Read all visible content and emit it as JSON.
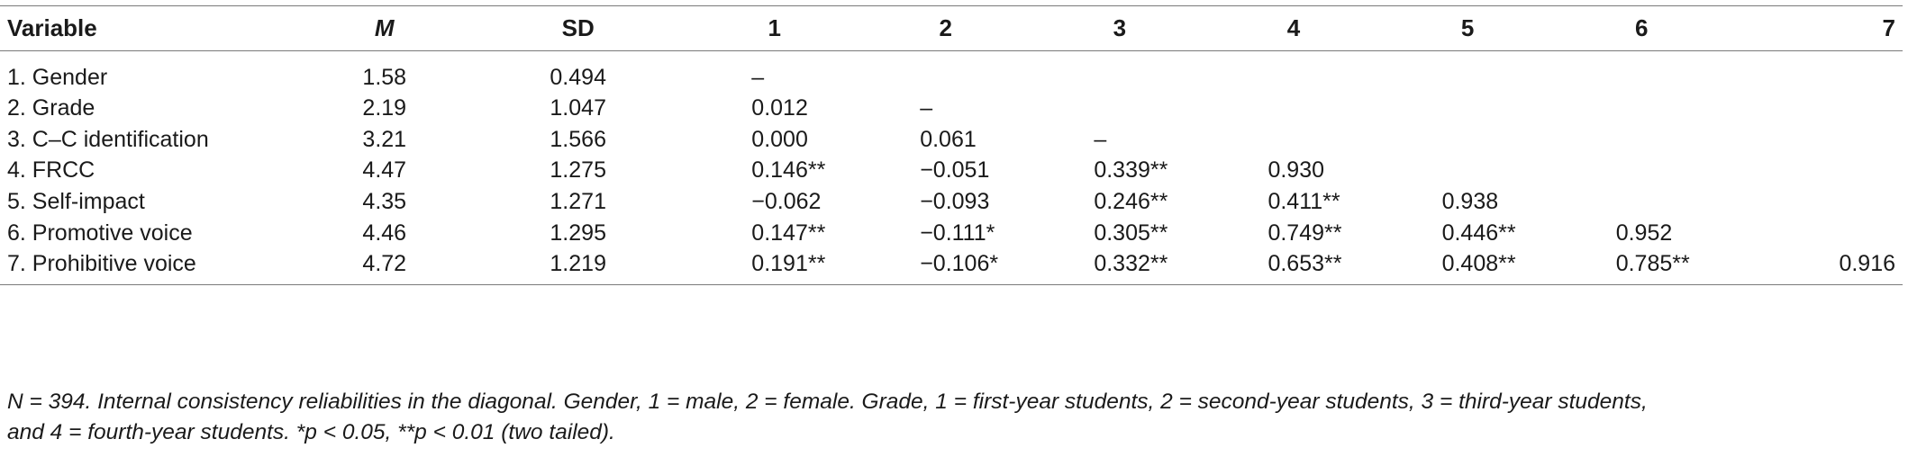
{
  "table": {
    "headers": [
      "Variable",
      "M",
      "SD",
      "1",
      "2",
      "3",
      "4",
      "5",
      "6",
      "7"
    ],
    "rows": [
      [
        "1. Gender",
        "1.58",
        "0.494",
        "–",
        "",
        "",
        "",
        "",
        "",
        ""
      ],
      [
        "2. Grade",
        "2.19",
        "1.047",
        "0.012",
        "–",
        "",
        "",
        "",
        "",
        ""
      ],
      [
        "3. C–C identification",
        "3.21",
        "1.566",
        "0.000",
        "0.061",
        "–",
        "",
        "",
        "",
        ""
      ],
      [
        "4. FRCC",
        "4.47",
        "1.275",
        "0.146**",
        "−0.051",
        "0.339**",
        "0.930",
        "",
        "",
        ""
      ],
      [
        "5. Self-impact",
        "4.35",
        "1.271",
        "−0.062",
        "−0.093",
        "0.246**",
        "0.411**",
        "0.938",
        "",
        ""
      ],
      [
        "6. Promotive voice",
        "4.46",
        "1.295",
        "0.147**",
        "−0.111*",
        "0.305**",
        "0.749**",
        "0.446**",
        "0.952",
        ""
      ],
      [
        "7. Prohibitive voice",
        "4.72",
        "1.219",
        "0.191**",
        "−0.106*",
        "0.332**",
        "0.653**",
        "0.408**",
        "0.785**",
        "0.916"
      ]
    ]
  },
  "note": {
    "line1": "N = 394. Internal consistency reliabilities in the diagonal. Gender, 1 = male, 2 = female. Grade, 1 = first-year students, 2 = second-year students, 3 = third-year students,",
    "line2": "and 4 = fourth-year students. *p < 0.05, **p < 0.01 (two tailed)."
  }
}
